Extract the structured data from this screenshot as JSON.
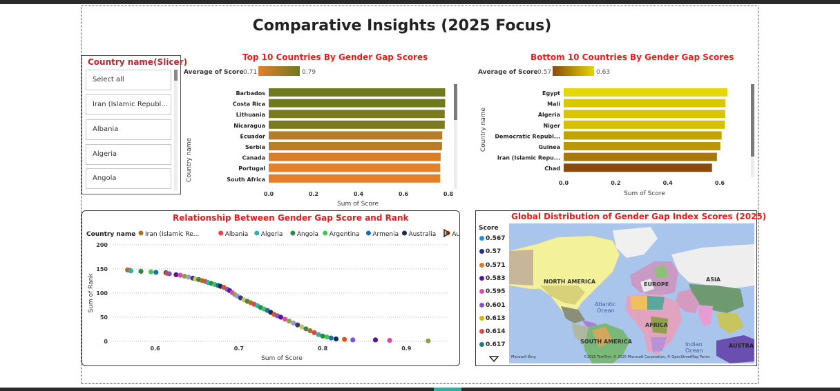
{
  "page": {
    "title": "Comparative Insights (2025 Focus)"
  },
  "slicer": {
    "title": "Country name(Slicer)",
    "items": [
      "Select all",
      "Iran (Islamic Republ...",
      "Albania",
      "Algeria",
      "Angola"
    ]
  },
  "top_chart": {
    "title": "Top 10 Countries By Gender Gap Scores",
    "legend_label": "Average of Score",
    "legend_min": "0.71",
    "legend_max": "0.79",
    "color_min": "#e57f2a",
    "color_max": "#6f7a1e"
  },
  "bottom_chart": {
    "title": "Bottom 10 Countries By Gender Gap Scores",
    "legend_label": "Average of Score",
    "legend_min": "0.57",
    "legend_max": "0.63",
    "color_min": "#8b4a0c",
    "color_max": "#e4d800"
  },
  "scatter_chart": {
    "title": "Relationship Between Gender Gap Score and Rank",
    "legend_label": "Country name",
    "legend_items": [
      {
        "name": "Iran (Islamic Re...",
        "color": "#a0781e"
      },
      {
        "name": "Albania",
        "color": "#e8414b"
      },
      {
        "name": "Algeria",
        "color": "#2ab3a6"
      },
      {
        "name": "Angola",
        "color": "#2b8a3e"
      },
      {
        "name": "Argentina",
        "color": "#46c25a"
      },
      {
        "name": "Armenia",
        "color": "#1f6fb0"
      },
      {
        "name": "Australia",
        "color": "#1a2a4f"
      },
      {
        "name": "Austria",
        "color": "#d9531e"
      }
    ]
  },
  "map_chart": {
    "title": "Global Distribution of Gender Gap Index Scores (2025)",
    "legend_title": "Score",
    "legend_items": [
      {
        "label": "0.567",
        "color": "#1f8fe0"
      },
      {
        "label": "0.57",
        "color": "#1b2d8c"
      },
      {
        "label": "0.571",
        "color": "#e0792a"
      },
      {
        "label": "0.583",
        "color": "#5a1890"
      },
      {
        "label": "0.595",
        "color": "#e04aa6"
      },
      {
        "label": "0.601",
        "color": "#7b58c8"
      },
      {
        "label": "0.613",
        "color": "#d8b400"
      },
      {
        "label": "0.614",
        "color": "#d94a4a"
      },
      {
        "label": "0.617",
        "color": "#1f7a7a"
      }
    ],
    "labels": {
      "north_america": "NORTH AMERICA",
      "south_america": "SOUTH AMERICA",
      "europe": "EUROPE",
      "asia": "ASIA",
      "africa": "AFRICA",
      "australia": "AUSTRAL",
      "atlantic": "Atlantic",
      "atlantic2": "Ocean",
      "indian": "Indian",
      "indian2": "Ocean"
    },
    "attribution": "©2025 TomTom, © 2025 Microsoft Corporation, © OpenStreetMap  Terms",
    "bing": "Microsoft Bing"
  },
  "chart_data": [
    {
      "type": "bar",
      "orientation": "horizontal",
      "title": "Top 10 Countries By Gender Gap Scores",
      "categories": [
        "Barbados",
        "Costa Rica",
        "Lithuania",
        "Nicaragua",
        "Ecuador",
        "Serbia",
        "Canada",
        "Portugal",
        "South Africa"
      ],
      "values": [
        0.786,
        0.786,
        0.784,
        0.784,
        0.773,
        0.772,
        0.766,
        0.764,
        0.764
      ],
      "xlabel": "Sum of Score",
      "ylabel": "Country name",
      "xlim": [
        0,
        0.8
      ],
      "xticks": [
        "0.0",
        "0.2",
        "0.4",
        "0.6",
        "0.8"
      ]
    },
    {
      "type": "bar",
      "orientation": "horizontal",
      "title": "Bottom 10 Countries By Gender Gap Scores",
      "categories": [
        "Egypt",
        "Mali",
        "Algeria",
        "Niger",
        "Democratic Republ...",
        "Guinea",
        "Iran (Islamic Repu...",
        "Chad"
      ],
      "values": [
        0.629,
        0.622,
        0.621,
        0.619,
        0.607,
        0.602,
        0.589,
        0.57
      ],
      "xlabel": "Sum of Score",
      "ylabel": "Country name",
      "xlim": [
        0,
        0.6
      ],
      "xticks": [
        "0.0",
        "0.2",
        "0.4",
        "0.6"
      ]
    },
    {
      "type": "scatter",
      "title": "Relationship Between Gender Gap Score and Rank",
      "xlabel": "Sum of Score",
      "ylabel": "Sum of Rank",
      "xlim": [
        0.55,
        0.95
      ],
      "ylim": [
        0,
        200
      ],
      "xticks": [
        "0.6",
        "0.7",
        "0.8",
        "0.9"
      ],
      "yticks": [
        "0",
        "50",
        "100",
        "150",
        "200"
      ],
      "points": [
        [
          0.567,
          148
        ],
        [
          0.57,
          147
        ],
        [
          0.571,
          146
        ],
        [
          0.583,
          145
        ],
        [
          0.595,
          144
        ],
        [
          0.601,
          143
        ],
        [
          0.613,
          142
        ],
        [
          0.614,
          141
        ],
        [
          0.617,
          140
        ],
        [
          0.625,
          138
        ],
        [
          0.63,
          137
        ],
        [
          0.635,
          135
        ],
        [
          0.64,
          133
        ],
        [
          0.645,
          131
        ],
        [
          0.648,
          129
        ],
        [
          0.652,
          128
        ],
        [
          0.656,
          126
        ],
        [
          0.66,
          124
        ],
        [
          0.663,
          122
        ],
        [
          0.667,
          120
        ],
        [
          0.671,
          118
        ],
        [
          0.675,
          116
        ],
        [
          0.678,
          114
        ],
        [
          0.682,
          112
        ],
        [
          0.686,
          108
        ],
        [
          0.689,
          105
        ],
        [
          0.692,
          101
        ],
        [
          0.695,
          97
        ],
        [
          0.698,
          94
        ],
        [
          0.702,
          90
        ],
        [
          0.706,
          86
        ],
        [
          0.71,
          83
        ],
        [
          0.714,
          80
        ],
        [
          0.718,
          77
        ],
        [
          0.722,
          74
        ],
        [
          0.726,
          70
        ],
        [
          0.73,
          67
        ],
        [
          0.734,
          64
        ],
        [
          0.738,
          60
        ],
        [
          0.742,
          56
        ],
        [
          0.746,
          53
        ],
        [
          0.75,
          50
        ],
        [
          0.755,
          46
        ],
        [
          0.76,
          42
        ],
        [
          0.765,
          38
        ],
        [
          0.77,
          34
        ],
        [
          0.775,
          30
        ],
        [
          0.78,
          26
        ],
        [
          0.785,
          22
        ],
        [
          0.79,
          18
        ],
        [
          0.795,
          14
        ],
        [
          0.8,
          11
        ],
        [
          0.805,
          9
        ],
        [
          0.81,
          7
        ],
        [
          0.816,
          5
        ],
        [
          0.826,
          4
        ],
        [
          0.836,
          3
        ],
        [
          0.863,
          3
        ],
        [
          0.88,
          2
        ],
        [
          0.926,
          1
        ]
      ]
    }
  ]
}
